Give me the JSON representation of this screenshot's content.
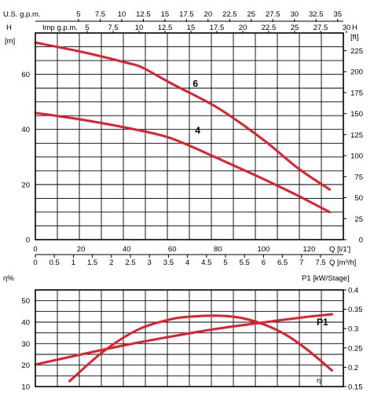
{
  "chart_data": [
    {
      "type": "line",
      "title": "",
      "top_axis_1": {
        "label": "U.S. g.p.m.",
        "ticks": [
          "5",
          "7.5",
          "10",
          "12.5",
          "15",
          "17.5",
          "20",
          "22.5",
          "25",
          "27.5",
          "30",
          "32.5",
          "35"
        ],
        "range": [
          5,
          35
        ]
      },
      "top_axis_2": {
        "label": "Imp g.p.m.",
        "ticks": [
          "5",
          "7.5",
          "10",
          "12.5",
          "15",
          "17.5",
          "20",
          "22.5",
          "25",
          "27.5",
          "30"
        ],
        "range": [
          5,
          30
        ]
      },
      "left_axis": {
        "label_top": "H",
        "unit": "[m]",
        "ticks": [
          "0",
          "20",
          "40",
          "60"
        ],
        "range": [
          0,
          75
        ]
      },
      "right_axis": {
        "label_top": "H",
        "unit": "[ft]",
        "ticks": [
          "0",
          "25",
          "50",
          "75",
          "100",
          "125",
          "150",
          "175",
          "200",
          "225"
        ],
        "range": [
          0,
          246
        ]
      },
      "xlabel_1": "Q [l/1']",
      "xlabel_2": "Q [m³/h]",
      "x_lpm_ticks": [
        "0",
        "20",
        "40",
        "60",
        "80",
        "100",
        "120"
      ],
      "x_m3h_ticks": [
        "0",
        "0.5",
        "1",
        "1.5",
        "2",
        "2.5",
        "3",
        "3.5",
        "4",
        "4.5",
        "5",
        "5.5",
        "6",
        "6.5",
        "7",
        "7.5"
      ],
      "xlim": [
        0,
        135
      ],
      "grid": true,
      "series": [
        {
          "name": "6",
          "color": "#e0202a",
          "x": [
            0,
            20,
            40,
            47,
            60,
            80,
            100,
            115,
            129
          ],
          "y": [
            71.5,
            68.2,
            64.2,
            62.4,
            56.5,
            47.8,
            36.2,
            26.0,
            18.2
          ]
        },
        {
          "name": "4",
          "color": "#e0202a",
          "x": [
            0,
            20,
            40,
            55,
            65,
            80,
            100,
            115,
            129
          ],
          "y": [
            46,
            43.6,
            40.6,
            37.9,
            35.0,
            29.5,
            22.0,
            16.0,
            10.0
          ]
        }
      ]
    },
    {
      "type": "line",
      "title": "",
      "left_axis": {
        "label_top": "η%",
        "ticks": [
          "10",
          "20",
          "30",
          "40",
          "50"
        ],
        "range": [
          10,
          55
        ]
      },
      "right_axis": {
        "label_top": "P1 [kW/Stage]",
        "ticks": [
          "0.15",
          "0.2",
          "0.25",
          "0.3",
          "0.35",
          "0.4"
        ],
        "range": [
          0.15,
          0.4
        ]
      },
      "xlim": [
        0,
        135
      ],
      "grid": true,
      "series": [
        {
          "name": "η",
          "color": "#e0202a",
          "axis": "left",
          "x": [
            15,
            30,
            45,
            60,
            70,
            80,
            90,
            100,
            110,
            120,
            130
          ],
          "y": [
            12.5,
            26.5,
            36.5,
            41.5,
            42.7,
            43.0,
            42.0,
            39.0,
            34.0,
            26.5,
            17.5
          ]
        },
        {
          "name": "P1",
          "color": "#e0202a",
          "axis": "right",
          "x": [
            0,
            20,
            40,
            60,
            80,
            100,
            120,
            130
          ],
          "y": [
            0.207,
            0.233,
            0.258,
            0.28,
            0.3,
            0.316,
            0.331,
            0.337
          ]
        }
      ]
    }
  ]
}
